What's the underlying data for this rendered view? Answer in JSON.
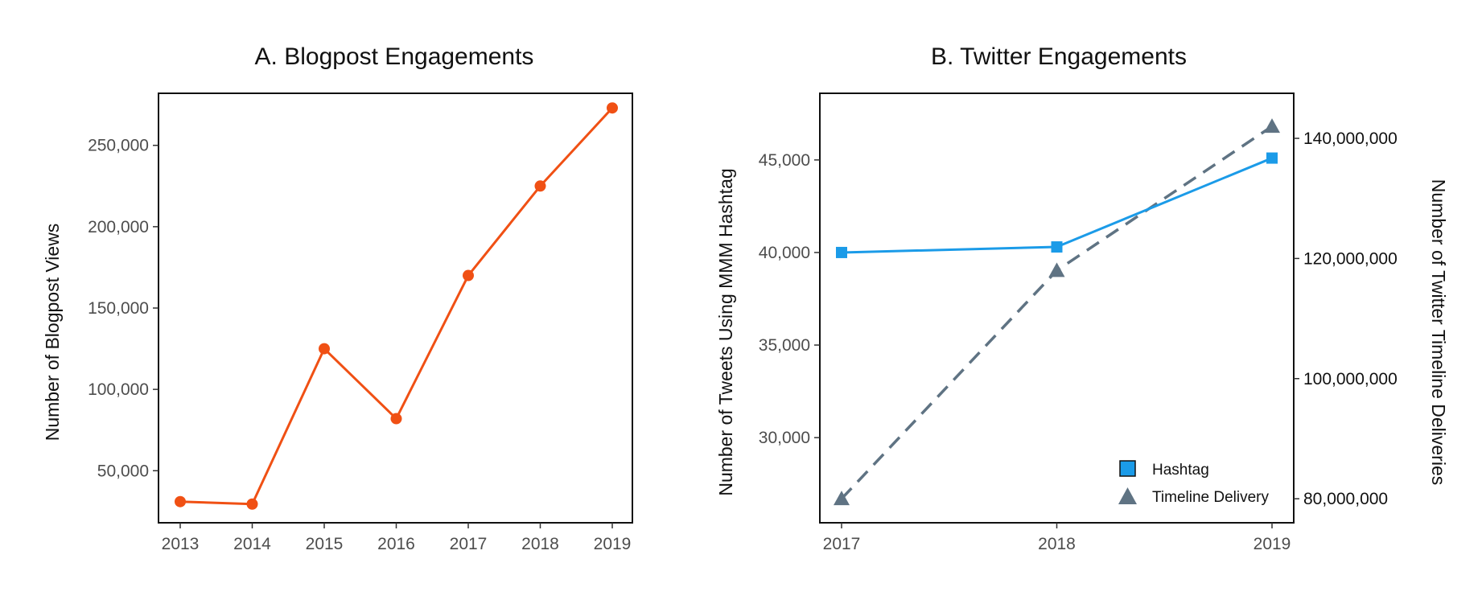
{
  "chart_data": [
    {
      "type": "line",
      "title": "A. Blogpost Engagements",
      "xlabel": "",
      "ylabel": "Number of Blogpost Views",
      "x": [
        2013,
        2014,
        2015,
        2016,
        2017,
        2018,
        2019
      ],
      "x_tick_labels": [
        "2013",
        "2014",
        "2015",
        "2016",
        "2017",
        "2018",
        "2019"
      ],
      "series": [
        {
          "values": [
            31000,
            29500,
            125000,
            82000,
            170000,
            225000,
            273000
          ],
          "color": "#f05014"
        }
      ],
      "ylim": [
        18000,
        282000
      ],
      "y_ticks": [
        50000,
        100000,
        150000,
        200000,
        250000
      ],
      "y_tick_labels": [
        "50,000",
        "100,000",
        "150,000",
        "200,000",
        "250,000"
      ],
      "grid": false
    },
    {
      "type": "line",
      "title": "B. Twitter Engagements",
      "xlabel": "",
      "ylabel": "Number of Tweets Using MMM Hashtag",
      "y2label": "Number of Twitter Timeline Deliveries",
      "x": [
        2017,
        2018,
        2019
      ],
      "x_tick_labels": [
        "2017",
        "2018",
        "2019"
      ],
      "series": [
        {
          "name": "Hashtag",
          "axis": "left",
          "values": [
            40000,
            40300,
            45100
          ],
          "color": "#1b9be8",
          "marker": "square",
          "line": "solid"
        },
        {
          "name": "Timeline Delivery",
          "axis": "right",
          "values": [
            80000000,
            118000000,
            142000000
          ],
          "color": "#5f7383",
          "marker": "triangle",
          "line": "dashed"
        }
      ],
      "ylim": [
        25400,
        48600
      ],
      "y_ticks": [
        30000,
        35000,
        40000,
        45000
      ],
      "y_tick_labels": [
        "30,000",
        "35,000",
        "40,000",
        "45,000"
      ],
      "y2lim": [
        76000000,
        147500000
      ],
      "y2_ticks": [
        80000000,
        100000000,
        120000000,
        140000000
      ],
      "y2_tick_labels": [
        "80,000,000",
        "100,000,000",
        "120,000,000",
        "140,000,000"
      ],
      "legend_position": "bottom-right",
      "grid": false
    }
  ]
}
